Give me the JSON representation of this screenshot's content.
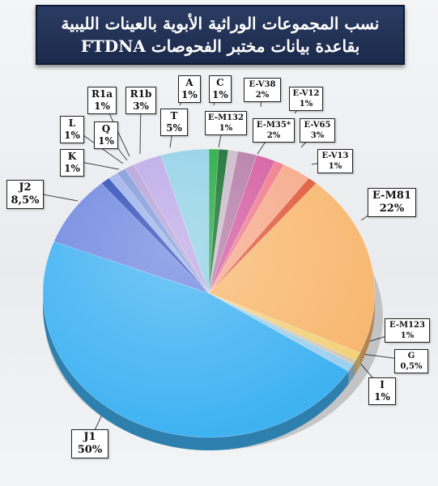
{
  "title": {
    "line1": "نسب المجموعات الوراثية الأبوية بالعينات الليبية",
    "line2": "بقاعدة بيانات مختبر الفحوصات FTDNA"
  },
  "chart_data": {
    "type": "pie",
    "title": "نسب المجموعات الوراثية الأبوية بالعينات الليبية بقاعدة بيانات مختبر الفحوصات FTDNA",
    "slices": [
      {
        "name": "A",
        "label": "1%",
        "value": 1,
        "color": "#1fa83a"
      },
      {
        "name": "C",
        "label": "1%",
        "value": 1,
        "color": "#0f6b2a"
      },
      {
        "name": "E-M132",
        "label": "1%",
        "value": 1,
        "color": "#c9b9c9"
      },
      {
        "name": "E-V38",
        "label": "2%",
        "value": 2,
        "color": "#b47aa7"
      },
      {
        "name": "E-M35*",
        "label": "2%",
        "value": 2,
        "color": "#d45aa0"
      },
      {
        "name": "E-V12",
        "label": "1%",
        "value": 1,
        "color": "#f07a8a"
      },
      {
        "name": "E-V65",
        "label": "3%",
        "value": 3,
        "color": "#f6a98a"
      },
      {
        "name": "E-V13",
        "label": "1%",
        "value": 1,
        "color": "#e05a3a"
      },
      {
        "name": "E-M81",
        "label": "22%",
        "value": 22,
        "color": "#f8b870"
      },
      {
        "name": "E-M123",
        "label": "1%",
        "value": 1,
        "color": "#f3d27a"
      },
      {
        "name": "G",
        "label": "0,5%",
        "value": 0.5,
        "color": "#d8c8b0"
      },
      {
        "name": "I",
        "label": "1%",
        "value": 1,
        "color": "#9ed0ef"
      },
      {
        "name": "J1",
        "label": "50%",
        "value": 50,
        "color": "#3fb2f2"
      },
      {
        "name": "J2",
        "label": "8,5%",
        "value": 8.5,
        "color": "#6e86e0"
      },
      {
        "name": "K",
        "label": "1%",
        "value": 1,
        "color": "#2b49b8"
      },
      {
        "name": "L",
        "label": "1%",
        "value": 1,
        "color": "#9ab0ea"
      },
      {
        "name": "Q",
        "label": "1%",
        "value": 1,
        "color": "#7d98d8"
      },
      {
        "name": "R1a",
        "label": "1%",
        "value": 1,
        "color": "#b3a0d8"
      },
      {
        "name": "R1b",
        "label": "3%",
        "value": 3,
        "color": "#bba7e6"
      },
      {
        "name": "T",
        "label": "5%",
        "value": 5,
        "color": "#8fd0e6"
      }
    ]
  }
}
